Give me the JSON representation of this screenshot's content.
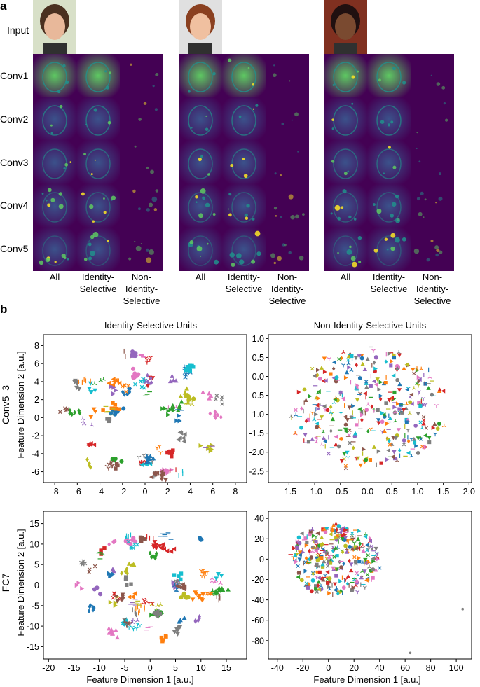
{
  "panel_a": {
    "label": "a",
    "row_labels": [
      "Input",
      "Conv1",
      "Conv2",
      "Conv3",
      "Conv4",
      "Conv5"
    ],
    "column_labels": [
      [
        "All"
      ],
      [
        "Identity-",
        "Selective"
      ],
      [
        "Non-",
        "Identity-",
        "Selective"
      ]
    ],
    "subjects": [
      {
        "name": "subject-1",
        "skin": "#e8b89a",
        "hair": "#4a3020",
        "bg": "#d8e0c8"
      },
      {
        "name": "subject-2",
        "skin": "#f0c0a0",
        "hair": "#8a4020",
        "bg": "#e0e0e0"
      },
      {
        "name": "subject-3",
        "skin": "#7a4a30",
        "hair": "#201010",
        "bg": "#803020"
      }
    ],
    "colormap": [
      "#440154",
      "#3b528b",
      "#21918c",
      "#5ec962",
      "#fde725"
    ]
  },
  "panel_b": {
    "label": "b",
    "x_label": "Feature Dimension 1 [a.u.]",
    "y_label": "Feature Dimension 2 [a.u.]",
    "row_labels": [
      "Conv5_3",
      "FC7"
    ],
    "column_titles": [
      "Identity-Selective Units",
      "Non-Identity-Selective Units"
    ]
  },
  "chart_data": [
    {
      "type": "scatter",
      "name": "conv5-identity",
      "title": "Identity-Selective Units",
      "row": "Conv5_3",
      "xlim": [
        -9,
        9
      ],
      "ylim": [
        -7.2,
        9.2
      ],
      "xticks": [
        -8,
        -6,
        -4,
        -2,
        0,
        2,
        4,
        6,
        8
      ],
      "xtick_labels": [
        "-8",
        "-6",
        "-4",
        "-2",
        "0",
        "2",
        "4",
        "6",
        "8"
      ],
      "yticks": [
        8,
        6,
        4,
        2,
        0,
        -2,
        -4,
        -6
      ],
      "ytick_labels": [
        "8",
        "6",
        "4",
        "2",
        "0",
        "-2",
        "-4",
        "-6"
      ],
      "structure": "clustered",
      "radius": 7.2
    },
    {
      "type": "scatter",
      "name": "conv5-non-identity",
      "title": "Non-Identity-Selective Units",
      "row": "Conv5_3",
      "xlim": [
        -1.9,
        2.05
      ],
      "ylim": [
        -2.8,
        1.1
      ],
      "xticks": [
        -1.5,
        -1.0,
        -0.5,
        0.0,
        0.5,
        1.0,
        1.5,
        2.0
      ],
      "xtick_labels": [
        "-1.5",
        "-1.0",
        "-0.5",
        "-0.0",
        "0.5",
        "1.0",
        "1.5",
        "2.0"
      ],
      "yticks": [
        1.0,
        0.5,
        0.0,
        -0.5,
        -1.0,
        -1.5,
        -2.0,
        -2.5
      ],
      "ytick_labels": [
        "1.0",
        "0.5",
        "0.0",
        "-0.5",
        "-1.0",
        "-1.5",
        "-2.0",
        "-2.5"
      ],
      "structure": "diffuse",
      "center": [
        0.05,
        -0.85
      ],
      "spread": [
        1.6,
        1.7
      ]
    },
    {
      "type": "scatter",
      "name": "fc7-identity",
      "title": "Identity-Selective Units",
      "row": "FC7",
      "xlim": [
        -21,
        19
      ],
      "ylim": [
        -18,
        18
      ],
      "xticks": [
        -20,
        -15,
        -10,
        -5,
        0,
        5,
        10,
        15
      ],
      "xtick_labels": [
        "-20",
        "-15",
        "-10",
        "-5",
        "0",
        "5",
        "10",
        "15"
      ],
      "yticks": [
        15,
        10,
        5,
        0,
        -5,
        -10,
        -15
      ],
      "ytick_labels": [
        "15",
        "10",
        "5",
        "0",
        "-5",
        "-10",
        "-15"
      ],
      "structure": "clustered",
      "radius": 14.5
    },
    {
      "type": "scatter",
      "name": "fc7-non-identity",
      "title": "Non-Identity-Selective Units",
      "row": "FC7",
      "xlim": [
        -47,
        112
      ],
      "ylim": [
        -98,
        47
      ],
      "xticks": [
        -40,
        -20,
        0,
        20,
        40,
        60,
        80,
        100
      ],
      "xtick_labels": [
        "-40",
        "-20",
        "0",
        "20",
        "40",
        "60",
        "80",
        "100"
      ],
      "yticks": [
        40,
        20,
        0,
        -20,
        -40,
        -60,
        -80
      ],
      "ytick_labels": [
        "40",
        "20",
        "0",
        "-20",
        "-40",
        "-60",
        "-80"
      ],
      "structure": "blob",
      "center": [
        5,
        0
      ],
      "spread": [
        40,
        40
      ],
      "outliers": [
        [
          105,
          -49
        ],
        [
          64,
          -92
        ]
      ]
    }
  ],
  "palette": [
    "#1f77b4",
    "#ff7f0e",
    "#2ca02c",
    "#d62728",
    "#9467bd",
    "#8c564b",
    "#e377c2",
    "#7f7f7f",
    "#bcbd22",
    "#17becf"
  ],
  "markers": [
    "circle",
    "triangle-down",
    "triangle-up",
    "triangle-left",
    "triangle-right",
    "tri-down",
    "tri-up",
    "square",
    "diamond",
    "x",
    "dash",
    "vline"
  ]
}
